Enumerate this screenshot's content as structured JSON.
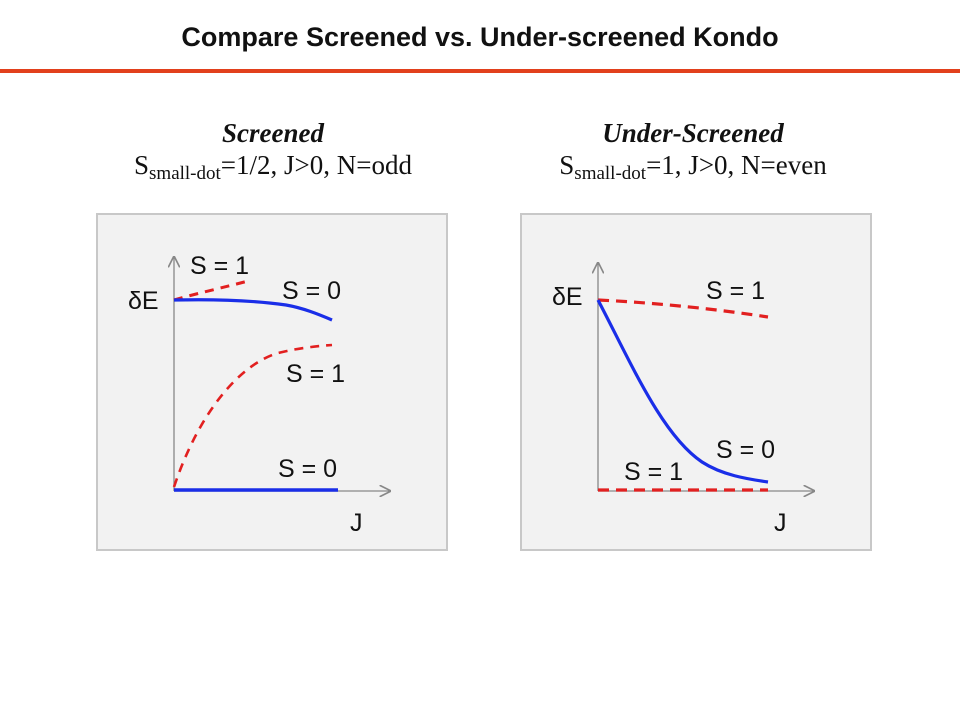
{
  "title": "Compare Screened vs. Under-screened Kondo",
  "colors": {
    "accent_rule": "#e2401c",
    "solid_curve": "#1a2ee8",
    "dashed_curve": "#e22020",
    "axis": "#888888",
    "frame_bg": "#f2f2f2"
  },
  "panels": [
    {
      "heading": "Screened",
      "subtitle_main": "S",
      "subtitle_sub": "small-dot",
      "subtitle_rest": "=1/2,  J>0, N=odd",
      "y_label": "δE",
      "x_label": "J",
      "curve_labels": [
        "S = 1",
        "S = 0",
        "S = 1",
        "S = 0"
      ]
    },
    {
      "heading": "Under-Screened",
      "subtitle_main": "S",
      "subtitle_sub": "small-dot",
      "subtitle_rest": "=1,  J>0, N=even",
      "y_label": "δE",
      "x_label": "J",
      "curve_labels": [
        "S = 1",
        "S = 0",
        "S = 1"
      ]
    }
  ]
}
